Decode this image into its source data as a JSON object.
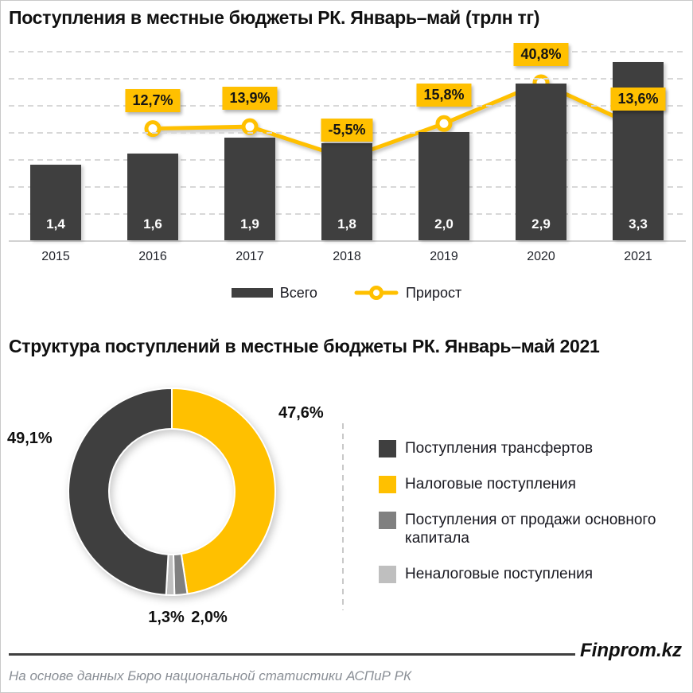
{
  "page": {
    "brand": "Finprom.kz",
    "source_note": "На основе данных Бюро национальной статистики АСПиР РК"
  },
  "colors": {
    "dark": "#3f3f3f",
    "accent": "#ffc000",
    "mid_gray": "#808080",
    "light_gray": "#bfbfbf",
    "grid": "#d8d8d8",
    "text": "#17171f",
    "muted_text": "#8a8f96"
  },
  "chart_data": [
    {
      "type": "bar",
      "subtype": "bar-with-line",
      "title": "Поступления в местные бюджеты РК. Январь–май (трлн тг)",
      "categories": [
        "2015",
        "2016",
        "2017",
        "2018",
        "2019",
        "2020",
        "2021"
      ],
      "series": [
        {
          "name": "Всего",
          "chart": "bar",
          "color": "#3f3f3f",
          "unit": "трлн тг",
          "values": [
            1.4,
            1.6,
            1.9,
            1.8,
            2.0,
            2.9,
            3.3
          ],
          "labels": [
            "1,4",
            "1,6",
            "1,9",
            "1,8",
            "2,0",
            "2,9",
            "3,3"
          ]
        },
        {
          "name": "Прирост",
          "chart": "line",
          "color": "#ffc000",
          "unit": "%",
          "values": [
            null,
            12.7,
            13.9,
            -5.5,
            15.8,
            40.8,
            13.6
          ],
          "labels": [
            null,
            "12,7%",
            "13,9%",
            "-5,5%",
            "15,8%",
            "40,8%",
            "13,6%"
          ]
        }
      ],
      "ylim": [
        0,
        3.7
      ],
      "y2lim": [
        -20,
        60
      ],
      "grid": "horizontal-dashed",
      "legend_position": "bottom"
    },
    {
      "type": "pie",
      "subtype": "donut",
      "title": "Структура поступлений в местные бюджеты РК. Январь–май 2021",
      "slices": [
        {
          "name": "Налоговые поступления",
          "value": 47.6,
          "label": "47,6%",
          "color": "#ffc000"
        },
        {
          "name": "Поступления от продажи основного капитала",
          "value": 2.0,
          "label": "2,0%",
          "color": "#808080"
        },
        {
          "name": "Неналоговые поступления",
          "value": 1.3,
          "label": "1,3%",
          "color": "#bfbfbf"
        },
        {
          "name": "Поступления трансфертов",
          "value": 49.1,
          "label": "49,1%",
          "color": "#3f3f3f"
        }
      ],
      "start_angle_deg": 0,
      "clockwise": true,
      "legend_order": [
        3,
        0,
        1,
        2
      ],
      "legend_position": "right"
    }
  ]
}
